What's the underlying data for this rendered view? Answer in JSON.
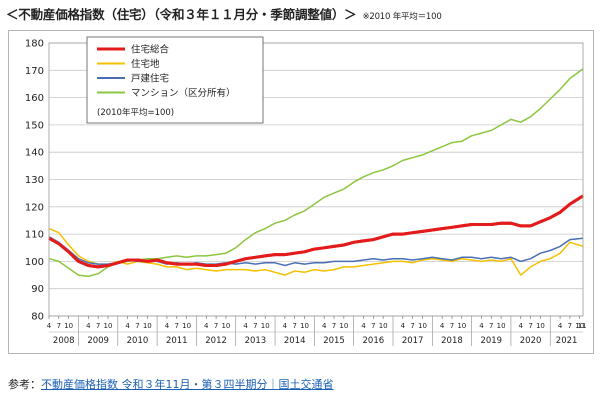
{
  "header": {
    "title": "＜不動産価格指数（住宅）（令和３年１１月分・季節調整値）＞",
    "note": "※2010 年平均＝100"
  },
  "footer": {
    "label": "参考：",
    "link_text": "不動産価格指数 令和３年11月・第３四半期分｜国土交通省"
  },
  "chart_data": {
    "type": "line",
    "title": "",
    "xlabel": "",
    "ylabel": "",
    "ylim": [
      80,
      180
    ],
    "yticks": [
      80,
      90,
      100,
      110,
      120,
      130,
      140,
      150,
      160,
      170,
      180
    ],
    "grid": true,
    "legend_position": "top-left",
    "legend_note": "(2010年平均=100)",
    "x_start": "2008-04",
    "x_end": "2021-11",
    "month_tick_labels": [
      "4",
      "7",
      "10"
    ],
    "last_month_tick_label": "11",
    "years": [
      "2008",
      "2009",
      "2010",
      "2011",
      "2012",
      "2013",
      "2014",
      "2015",
      "2016",
      "2017",
      "2018",
      "2019",
      "2020",
      "2021"
    ],
    "series": [
      {
        "name": "住宅総合",
        "color": "#e31b1b",
        "width": 3,
        "points": [
          [
            "2008-04",
            108.5
          ],
          [
            "2008-07",
            106.5
          ],
          [
            "2008-10",
            103.5
          ],
          [
            "2009-01",
            100
          ],
          [
            "2009-04",
            98.5
          ],
          [
            "2009-07",
            98
          ],
          [
            "2009-10",
            98.5
          ],
          [
            "2010-01",
            99.5
          ],
          [
            "2010-04",
            100.5
          ],
          [
            "2010-07",
            100.5
          ],
          [
            "2010-10",
            100
          ],
          [
            "2011-01",
            100.5
          ],
          [
            "2011-04",
            99.5
          ],
          [
            "2011-07",
            99
          ],
          [
            "2011-10",
            99
          ],
          [
            "2012-01",
            99
          ],
          [
            "2012-04",
            98.5
          ],
          [
            "2012-07",
            98.5
          ],
          [
            "2012-10",
            99
          ],
          [
            "2013-01",
            100
          ],
          [
            "2013-04",
            101
          ],
          [
            "2013-07",
            101.5
          ],
          [
            "2013-10",
            102
          ],
          [
            "2014-01",
            102.5
          ],
          [
            "2014-04",
            102.5
          ],
          [
            "2014-07",
            103
          ],
          [
            "2014-10",
            103.5
          ],
          [
            "2015-01",
            104.5
          ],
          [
            "2015-04",
            105
          ],
          [
            "2015-07",
            105.5
          ],
          [
            "2015-10",
            106
          ],
          [
            "2016-01",
            107
          ],
          [
            "2016-04",
            107.5
          ],
          [
            "2016-07",
            108
          ],
          [
            "2016-10",
            109
          ],
          [
            "2017-01",
            110
          ],
          [
            "2017-04",
            110
          ],
          [
            "2017-07",
            110.5
          ],
          [
            "2017-10",
            111
          ],
          [
            "2018-01",
            111.5
          ],
          [
            "2018-04",
            112
          ],
          [
            "2018-07",
            112.5
          ],
          [
            "2018-10",
            113
          ],
          [
            "2019-01",
            113.5
          ],
          [
            "2019-04",
            113.5
          ],
          [
            "2019-07",
            113.5
          ],
          [
            "2019-10",
            114
          ],
          [
            "2020-01",
            114
          ],
          [
            "2020-04",
            113
          ],
          [
            "2020-07",
            113
          ],
          [
            "2020-10",
            114.5
          ],
          [
            "2021-01",
            116
          ],
          [
            "2021-04",
            118
          ],
          [
            "2021-07",
            121
          ],
          [
            "2021-11",
            124
          ]
        ]
      },
      {
        "name": "住宅地",
        "color": "#f5c000",
        "width": 1.5,
        "points": [
          [
            "2008-04",
            112
          ],
          [
            "2008-07",
            110.5
          ],
          [
            "2008-10",
            106
          ],
          [
            "2009-01",
            102
          ],
          [
            "2009-04",
            100
          ],
          [
            "2009-07",
            99
          ],
          [
            "2009-10",
            98.5
          ],
          [
            "2010-01",
            100
          ],
          [
            "2010-04",
            99
          ],
          [
            "2010-07",
            100
          ],
          [
            "2010-10",
            99.5
          ],
          [
            "2011-01",
            99
          ],
          [
            "2011-04",
            98
          ],
          [
            "2011-07",
            98
          ],
          [
            "2011-10",
            97
          ],
          [
            "2012-01",
            97.5
          ],
          [
            "2012-04",
            97
          ],
          [
            "2012-07",
            96.5
          ],
          [
            "2012-10",
            97
          ],
          [
            "2013-01",
            97
          ],
          [
            "2013-04",
            97
          ],
          [
            "2013-07",
            96.5
          ],
          [
            "2013-10",
            97
          ],
          [
            "2014-01",
            96
          ],
          [
            "2014-04",
            95
          ],
          [
            "2014-07",
            96.5
          ],
          [
            "2014-10",
            96
          ],
          [
            "2015-01",
            97
          ],
          [
            "2015-04",
            96.5
          ],
          [
            "2015-07",
            97
          ],
          [
            "2015-10",
            98
          ],
          [
            "2016-01",
            98
          ],
          [
            "2016-04",
            98.5
          ],
          [
            "2016-07",
            99
          ],
          [
            "2016-10",
            99.5
          ],
          [
            "2017-01",
            100
          ],
          [
            "2017-04",
            100
          ],
          [
            "2017-07",
            99.5
          ],
          [
            "2017-10",
            100.5
          ],
          [
            "2018-01",
            101
          ],
          [
            "2018-04",
            100.5
          ],
          [
            "2018-07",
            100
          ],
          [
            "2018-10",
            101
          ],
          [
            "2019-01",
            100.5
          ],
          [
            "2019-04",
            100
          ],
          [
            "2019-07",
            100.5
          ],
          [
            "2019-10",
            100
          ],
          [
            "2020-01",
            101
          ],
          [
            "2020-04",
            95
          ],
          [
            "2020-07",
            98
          ],
          [
            "2020-10",
            100
          ],
          [
            "2021-01",
            101
          ],
          [
            "2021-04",
            103
          ],
          [
            "2021-07",
            107
          ],
          [
            "2021-11",
            105.5
          ]
        ]
      },
      {
        "name": "戸建住宅",
        "color": "#4a6fb5",
        "width": 1.5,
        "points": [
          [
            "2008-04",
            109
          ],
          [
            "2008-07",
            107
          ],
          [
            "2008-10",
            104
          ],
          [
            "2009-01",
            101
          ],
          [
            "2009-04",
            99.5
          ],
          [
            "2009-07",
            99
          ],
          [
            "2009-10",
            99
          ],
          [
            "2010-01",
            99.5
          ],
          [
            "2010-04",
            100.5
          ],
          [
            "2010-07",
            100
          ],
          [
            "2010-10",
            100
          ],
          [
            "2011-01",
            100
          ],
          [
            "2011-04",
            99
          ],
          [
            "2011-07",
            99.5
          ],
          [
            "2011-10",
            99
          ],
          [
            "2012-01",
            99.5
          ],
          [
            "2012-04",
            99
          ],
          [
            "2012-07",
            99
          ],
          [
            "2012-10",
            99.5
          ],
          [
            "2013-01",
            99
          ],
          [
            "2013-04",
            99.5
          ],
          [
            "2013-07",
            99
          ],
          [
            "2013-10",
            99.5
          ],
          [
            "2014-01",
            99.5
          ],
          [
            "2014-04",
            98.5
          ],
          [
            "2014-07",
            99.5
          ],
          [
            "2014-10",
            99
          ],
          [
            "2015-01",
            99.5
          ],
          [
            "2015-04",
            99.5
          ],
          [
            "2015-07",
            100
          ],
          [
            "2015-10",
            100
          ],
          [
            "2016-01",
            100
          ],
          [
            "2016-04",
            100.5
          ],
          [
            "2016-07",
            101
          ],
          [
            "2016-10",
            100.5
          ],
          [
            "2017-01",
            101
          ],
          [
            "2017-04",
            101
          ],
          [
            "2017-07",
            100.5
          ],
          [
            "2017-10",
            101
          ],
          [
            "2018-01",
            101.5
          ],
          [
            "2018-04",
            101
          ],
          [
            "2018-07",
            100.5
          ],
          [
            "2018-10",
            101.5
          ],
          [
            "2019-01",
            101.5
          ],
          [
            "2019-04",
            101
          ],
          [
            "2019-07",
            101.5
          ],
          [
            "2019-10",
            101
          ],
          [
            "2020-01",
            101.5
          ],
          [
            "2020-04",
            100
          ],
          [
            "2020-07",
            101
          ],
          [
            "2020-10",
            103
          ],
          [
            "2021-01",
            104
          ],
          [
            "2021-04",
            105.5
          ],
          [
            "2021-07",
            108
          ],
          [
            "2021-11",
            108.5
          ]
        ]
      },
      {
        "name": "マンション（区分所有）",
        "color": "#8cc63f",
        "width": 1.5,
        "points": [
          [
            "2008-04",
            101
          ],
          [
            "2008-07",
            100
          ],
          [
            "2008-10",
            97.5
          ],
          [
            "2009-01",
            95
          ],
          [
            "2009-04",
            94.5
          ],
          [
            "2009-07",
            95.5
          ],
          [
            "2009-10",
            98
          ],
          [
            "2010-01",
            99.5
          ],
          [
            "2010-04",
            100
          ],
          [
            "2010-07",
            100.5
          ],
          [
            "2010-10",
            101
          ],
          [
            "2011-01",
            101
          ],
          [
            "2011-04",
            101.5
          ],
          [
            "2011-07",
            102
          ],
          [
            "2011-10",
            101.5
          ],
          [
            "2012-01",
            102
          ],
          [
            "2012-04",
            102
          ],
          [
            "2012-07",
            102.5
          ],
          [
            "2012-10",
            103
          ],
          [
            "2013-01",
            105
          ],
          [
            "2013-04",
            108
          ],
          [
            "2013-07",
            110.5
          ],
          [
            "2013-10",
            112
          ],
          [
            "2014-01",
            114
          ],
          [
            "2014-04",
            115
          ],
          [
            "2014-07",
            117
          ],
          [
            "2014-10",
            118.5
          ],
          [
            "2015-01",
            121
          ],
          [
            "2015-04",
            123.5
          ],
          [
            "2015-07",
            125
          ],
          [
            "2015-10",
            126.5
          ],
          [
            "2016-01",
            129
          ],
          [
            "2016-04",
            131
          ],
          [
            "2016-07",
            132.5
          ],
          [
            "2016-10",
            133.5
          ],
          [
            "2017-01",
            135
          ],
          [
            "2017-04",
            137
          ],
          [
            "2017-07",
            138
          ],
          [
            "2017-10",
            139
          ],
          [
            "2018-01",
            140.5
          ],
          [
            "2018-04",
            142
          ],
          [
            "2018-07",
            143.5
          ],
          [
            "2018-10",
            144
          ],
          [
            "2019-01",
            146
          ],
          [
            "2019-04",
            147
          ],
          [
            "2019-07",
            148
          ],
          [
            "2019-10",
            150
          ],
          [
            "2020-01",
            152
          ],
          [
            "2020-04",
            151
          ],
          [
            "2020-07",
            153
          ],
          [
            "2020-10",
            156
          ],
          [
            "2021-01",
            159.5
          ],
          [
            "2021-04",
            163
          ],
          [
            "2021-07",
            167
          ],
          [
            "2021-11",
            170.5
          ]
        ]
      }
    ]
  }
}
